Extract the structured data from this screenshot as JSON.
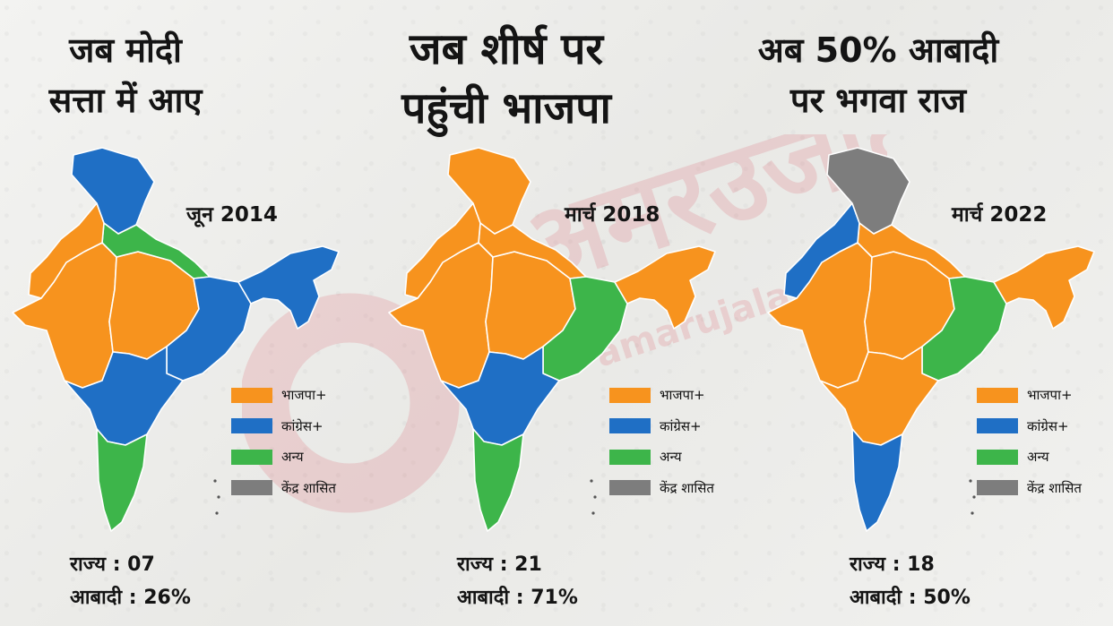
{
  "colors": {
    "bjp": "#F7931E",
    "congress": "#1F6FC5",
    "other": "#3DB54A",
    "ut": "#7D7D7D",
    "border": "#ffffff"
  },
  "panels": [
    {
      "heading_lines": [
        "जब मोदी",
        "सत्ता में आए"
      ],
      "date": "जून 2014",
      "stats": {
        "states_label": "राज्य : 07",
        "population_label": "आबादी : 26%"
      },
      "regions": {
        "north": "congress",
        "northwest": "bjp",
        "west": "bjp",
        "central": "bjp",
        "north_plain": "other",
        "east": "congress",
        "south": "congress",
        "deep_south": "other",
        "northeast": "congress"
      }
    },
    {
      "heading_lines": [
        "जब शीर्ष पर",
        "पहुंची भाजपा"
      ],
      "date": "मार्च 2018",
      "stats": {
        "states_label": "राज्य : 21",
        "population_label": "आबादी : 71%"
      },
      "regions": {
        "north": "bjp",
        "northwest": "bjp",
        "west": "bjp",
        "central": "bjp",
        "north_plain": "bjp",
        "east": "other",
        "south": "congress",
        "deep_south": "other",
        "northeast": "bjp"
      }
    },
    {
      "heading_lines": [
        "अब 50% आबादी",
        "पर भगवा राज"
      ],
      "date": "मार्च 2022",
      "stats": {
        "states_label": "राज्य : 18",
        "population_label": "आबादी : 50%"
      },
      "regions": {
        "north": "ut",
        "northwest": "congress",
        "west": "bjp",
        "central": "bjp",
        "north_plain": "bjp",
        "east": "other",
        "south": "bjp",
        "deep_south": "congress",
        "northeast": "bjp"
      }
    }
  ],
  "legend": [
    {
      "key": "bjp",
      "label": "भाजपा+"
    },
    {
      "key": "congress",
      "label": "कांग्रेस+"
    },
    {
      "key": "other",
      "label": "अन्य"
    },
    {
      "key": "ut",
      "label": "केंद्र शासित"
    }
  ],
  "watermark": {
    "text": "अमरउजाला",
    "sub": "amarujala"
  }
}
